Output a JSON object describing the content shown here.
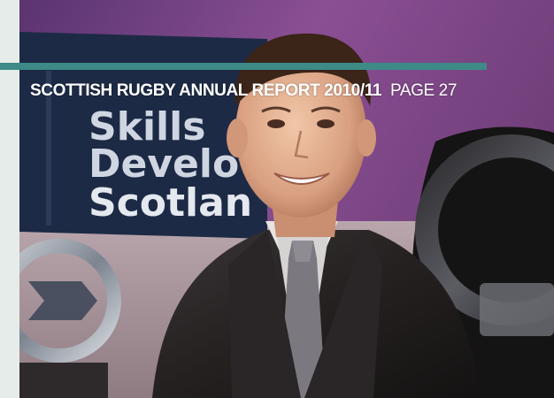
{
  "header": {
    "report_title": "SCOTTISH RUGBY ANNUAL REPORT 2010/11",
    "page_number": "PAGE 27"
  },
  "photo": {
    "banner_line_1": "Skills",
    "banner_line_2": "Develo",
    "banner_line_3": "Scotlan"
  },
  "colors": {
    "accent_rule": "#3d8a86",
    "banner_navy": "#1d2a45",
    "background_purple": "#6b3f7a"
  }
}
